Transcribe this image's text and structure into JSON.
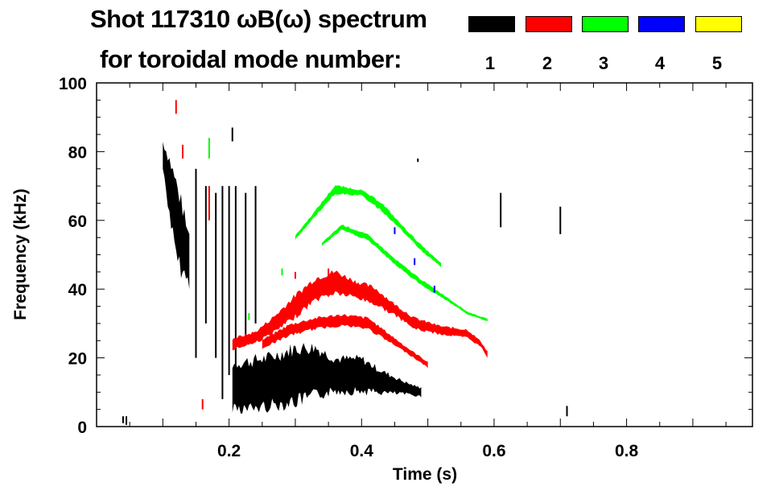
{
  "header": {
    "title": "Shot 117310 ωB(ω) spectrum",
    "subtitle": "for toroidal mode number:"
  },
  "chart_data": {
    "type": "heatmap",
    "title": "Shot 117310 ωB(ω) spectrum",
    "xlabel": "Time (s)",
    "ylabel": "Frequency (kHz)",
    "xlim": [
      0,
      0.99
    ],
    "ylim": [
      0,
      100
    ],
    "xticks": [
      0.2,
      0.4,
      0.6,
      0.8
    ],
    "xtick_labels": [
      "0.2",
      "0.4",
      "0.6",
      "0.8"
    ],
    "yticks": [
      0,
      20,
      40,
      60,
      80,
      100
    ],
    "ytick_labels": [
      "0",
      "20",
      "40",
      "60",
      "80",
      "100"
    ],
    "legend": {
      "placement": "top-right",
      "title": "for toroidal mode number:",
      "entries": [
        {
          "label": "1",
          "color": "#000000"
        },
        {
          "label": "2",
          "color": "#ff0000"
        },
        {
          "label": "3",
          "color": "#00ff00"
        },
        {
          "label": "4",
          "color": "#0000ff"
        },
        {
          "label": "5",
          "color": "#ffff00"
        }
      ]
    },
    "series": [
      {
        "name": "n=1",
        "color": "#000000",
        "bands": [
          [
            [
              0.1,
              79,
              5
            ],
            [
              0.11,
              70,
              10
            ],
            [
              0.12,
              60,
              14
            ],
            [
              0.13,
              54,
              12
            ],
            [
              0.14,
              48,
              8
            ]
          ],
          [
            [
              0.205,
              12,
              8
            ],
            [
              0.23,
              12,
              9
            ],
            [
              0.26,
              13,
              9
            ],
            [
              0.3,
              15,
              10
            ],
            [
              0.33,
              16,
              9
            ],
            [
              0.36,
              15,
              6
            ],
            [
              0.4,
              15,
              6
            ],
            [
              0.43,
              13,
              4
            ],
            [
              0.47,
              11,
              2
            ],
            [
              0.49,
              10,
              1.5
            ]
          ]
        ],
        "streaks": [
          [
            0.15,
            20,
            75
          ],
          [
            0.165,
            30,
            70
          ],
          [
            0.18,
            20,
            68
          ],
          [
            0.19,
            8,
            70
          ],
          [
            0.2,
            15,
            70
          ],
          [
            0.21,
            18,
            70
          ],
          [
            0.225,
            25,
            68
          ],
          [
            0.24,
            30,
            70
          ],
          [
            0.61,
            58,
            68
          ],
          [
            0.7,
            56,
            64
          ],
          [
            0.71,
            3,
            6
          ],
          [
            0.04,
            1,
            3
          ],
          [
            0.045,
            0.5,
            3
          ],
          [
            0.205,
            83,
            87
          ],
          [
            0.485,
            77,
            78
          ]
        ]
      },
      {
        "name": "n=2",
        "color": "#ff0000",
        "bands": [
          [
            [
              0.205,
              24,
              2
            ],
            [
              0.24,
              26,
              2
            ],
            [
              0.27,
              30,
              3
            ],
            [
              0.3,
              35,
              4
            ],
            [
              0.33,
              40,
              4
            ],
            [
              0.36,
              42,
              4
            ],
            [
              0.39,
              40,
              3
            ],
            [
              0.42,
              38,
              3
            ],
            [
              0.45,
              34,
              2
            ],
            [
              0.48,
              30,
              2
            ],
            [
              0.52,
              28,
              1.5
            ],
            [
              0.56,
              27,
              1.5
            ],
            [
              0.58,
              24,
              1
            ],
            [
              0.59,
              21,
              1
            ]
          ],
          [
            [
              0.25,
              24,
              1.5
            ],
            [
              0.29,
              28,
              2
            ],
            [
              0.33,
              30,
              2
            ],
            [
              0.37,
              31,
              2
            ],
            [
              0.41,
              30,
              2
            ],
            [
              0.44,
              26,
              1.5
            ],
            [
              0.47,
              22,
              1
            ],
            [
              0.5,
              18,
              1
            ]
          ]
        ],
        "streaks": [
          [
            0.12,
            91,
            95
          ],
          [
            0.13,
            78,
            82
          ],
          [
            0.17,
            60,
            70
          ],
          [
            0.3,
            43,
            45
          ],
          [
            0.35,
            43,
            46
          ],
          [
            0.16,
            5,
            8
          ]
        ]
      },
      {
        "name": "n=3",
        "color": "#00ff00",
        "bands": [
          [
            [
              0.3,
              55,
              0.7
            ],
            [
              0.33,
              62,
              1
            ],
            [
              0.36,
              69,
              1.5
            ],
            [
              0.4,
              68,
              1
            ],
            [
              0.43,
              64,
              1.5
            ],
            [
              0.46,
              58,
              1
            ],
            [
              0.49,
              52,
              1
            ],
            [
              0.52,
              47,
              0.6
            ]
          ],
          [
            [
              0.34,
              53,
              0.5
            ],
            [
              0.37,
              58,
              1
            ],
            [
              0.41,
              55,
              1
            ],
            [
              0.45,
              48,
              1
            ],
            [
              0.49,
              42,
              1
            ],
            [
              0.53,
              37,
              0.6
            ],
            [
              0.56,
              33,
              0.5
            ],
            [
              0.59,
              31,
              0.4
            ]
          ]
        ],
        "streaks": [
          [
            0.17,
            78,
            84
          ],
          [
            0.23,
            31,
            33
          ],
          [
            0.28,
            44,
            46
          ]
        ]
      },
      {
        "name": "n=4",
        "color": "#0000ff",
        "bands": [],
        "streaks": [
          [
            0.45,
            56,
            58
          ],
          [
            0.48,
            47,
            49
          ],
          [
            0.51,
            39,
            41
          ]
        ]
      },
      {
        "name": "n=5",
        "color": "#ffff00",
        "bands": [],
        "streaks": []
      }
    ]
  }
}
